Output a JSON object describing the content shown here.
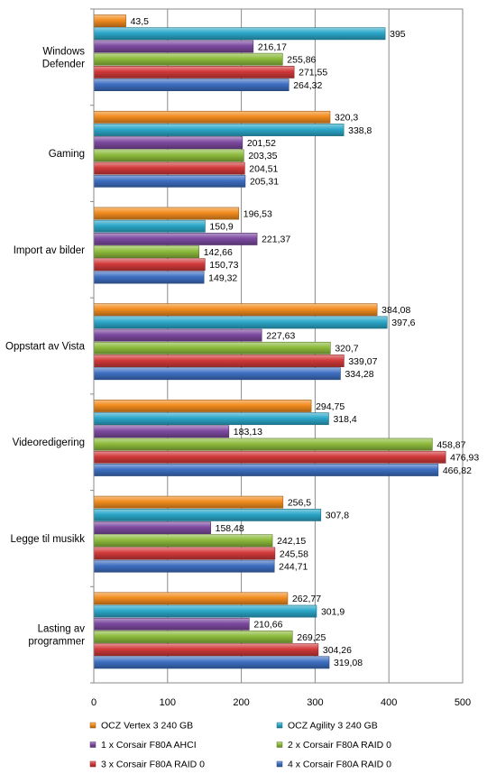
{
  "chart_data": {
    "type": "bar",
    "orientation": "horizontal",
    "categories": [
      [
        "Windows",
        "Defender"
      ],
      [
        "Gaming"
      ],
      [
        "Import av bilder"
      ],
      [
        "Oppstart av Vista"
      ],
      [
        "Videoredigering"
      ],
      [
        "Legge til musikk"
      ],
      [
        "Lasting av",
        "programmer"
      ]
    ],
    "series": [
      {
        "name": "OCZ Vertex 3 240 GB",
        "color": "#f28c1e",
        "values": [
          43.5,
          320.3,
          196.53,
          384.08,
          294.75,
          256.5,
          262.77
        ],
        "labels": [
          "43,5",
          "320,3",
          "196,53",
          "384,08",
          "294,75",
          "256,5",
          "262,77"
        ]
      },
      {
        "name": "OCZ Agility 3 240 GB",
        "color": "#2ba7c9",
        "values": [
          395,
          338.8,
          150.9,
          397.6,
          318.4,
          307.8,
          301.9
        ],
        "labels": [
          "395",
          "338,8",
          "150,9",
          "397,6",
          "318,4",
          "307,8",
          "301,9"
        ]
      },
      {
        "name": "1 x Corsair F80A AHCI",
        "color": "#7d4aa0",
        "values": [
          216.17,
          201.52,
          221.37,
          227.63,
          183.13,
          158.48,
          210.66
        ],
        "labels": [
          "216,17",
          "201,52",
          "221,37",
          "227,63",
          "183,13",
          "158,48",
          "210,66"
        ]
      },
      {
        "name": "2 x Corsair F80A RAID 0",
        "color": "#8dbb3c",
        "values": [
          255.86,
          203.35,
          142.66,
          320.7,
          458.87,
          242.15,
          269.25
        ],
        "labels": [
          "255,86",
          "203,35",
          "142,66",
          "320,7",
          "458,87",
          "242,15",
          "269,25"
        ]
      },
      {
        "name": "3 x Corsair F80A RAID 0",
        "color": "#d2393a",
        "values": [
          271.55,
          204.51,
          150.73,
          339.07,
          476.93,
          245.58,
          304.26
        ],
        "labels": [
          "271,55",
          "204,51",
          "150,73",
          "339,07",
          "476,93",
          "245,58",
          "304,26"
        ]
      },
      {
        "name": "4 x Corsair F80A RAID 0",
        "color": "#3e6fc2",
        "values": [
          264.32,
          205.31,
          149.32,
          334.28,
          466.82,
          244.71,
          319.08
        ],
        "labels": [
          "264,32",
          "205,31",
          "149,32",
          "334,28",
          "466,82",
          "244,71",
          "319,08"
        ]
      }
    ],
    "xlim": [
      0,
      500
    ],
    "ticks": [
      0,
      100,
      200,
      300,
      400,
      500
    ],
    "grid": true,
    "legend": "bottom"
  }
}
